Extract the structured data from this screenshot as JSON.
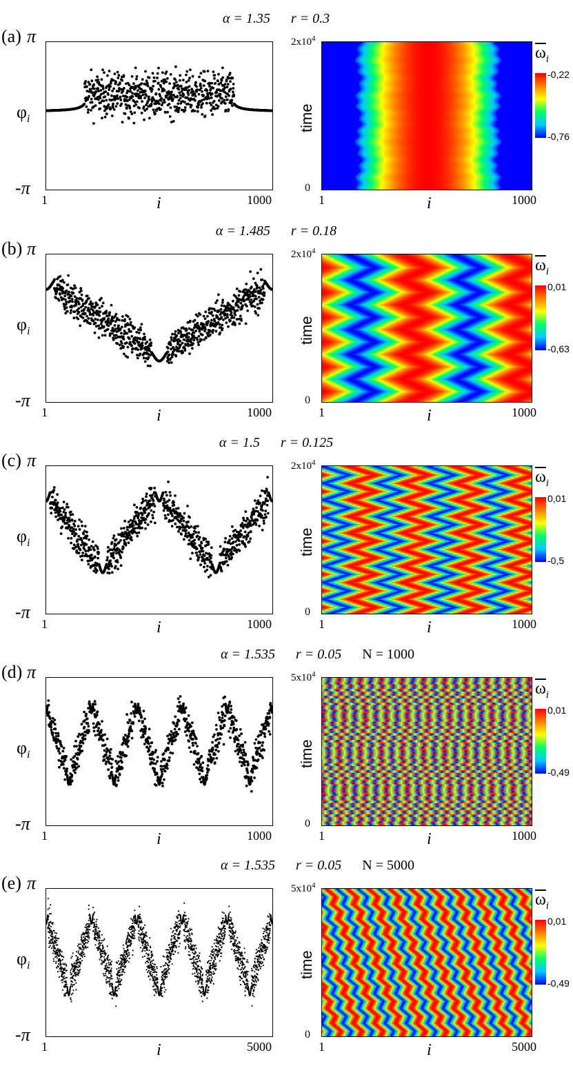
{
  "panels": [
    {
      "label": "(a)",
      "params": {
        "alpha": "α = 1.35",
        "r": "r = 0.3",
        "N": ""
      },
      "phase_plot": {
        "ylabel": "φ",
        "ylabel_sub": "i",
        "ytop": "π",
        "ybottom": "-π",
        "xlabel": "i",
        "xmin": "1",
        "xmax": "1000",
        "N": 1000,
        "pattern": {
          "type": "single-incoherent-core",
          "coherent_phase": 0.02,
          "incoherent_fraction": 0.66,
          "center": 0.5
        }
      },
      "heatmap": {
        "ylabel": "time",
        "ymax": "2x10",
        "ymax_exp": "4",
        "ymin": "0",
        "xlabel": "i",
        "xmin": "1",
        "xmax": "1000",
        "colorbar": {
          "symbol": "ω",
          "sub": "i",
          "max": "-0,22",
          "min": "-0,76"
        },
        "pattern": {
          "type": "stationary",
          "center": 0.5,
          "width": 0.66
        }
      }
    },
    {
      "label": "(b)",
      "params": {
        "alpha": "α = 1.485",
        "r": "r = 0.18",
        "N": ""
      },
      "phase_plot": {
        "ylabel": "φ",
        "ylabel_sub": "i",
        "ytop": "π",
        "ybottom": "-π",
        "xlabel": "i",
        "xmin": "1",
        "xmax": "1000",
        "N": 1000,
        "pattern": {
          "type": "two-cluster",
          "clusters": 1
        }
      },
      "heatmap": {
        "ylabel": "time",
        "ymax": "2x10",
        "ymax_exp": "4",
        "ymin": "0",
        "xlabel": "i",
        "xmin": "1",
        "xmax": "1000",
        "colorbar": {
          "symbol": "ω",
          "sub": "i",
          "max": "0,01",
          "min": "-0,63"
        },
        "pattern": {
          "type": "zigzag",
          "wavelength_count": 2,
          "zig_periods": 6
        }
      }
    },
    {
      "label": "(c)",
      "params": {
        "alpha": "α = 1.5",
        "r": "r = 0.125",
        "N": ""
      },
      "phase_plot": {
        "ylabel": "φ",
        "ylabel_sub": "i",
        "ytop": "π",
        "ybottom": "-π",
        "xlabel": "i",
        "xmin": "1",
        "xmax": "1000",
        "N": 1000,
        "pattern": {
          "type": "two-cluster",
          "clusters": 2
        }
      },
      "heatmap": {
        "ylabel": "time",
        "ymax": "2x10",
        "ymax_exp": "4",
        "ymin": "0",
        "xlabel": "i",
        "xmin": "1",
        "xmax": "1000",
        "colorbar": {
          "symbol": "ω",
          "sub": "i",
          "max": "0,01",
          "min": "-0,5"
        },
        "pattern": {
          "type": "zigzag",
          "wavelength_count": 4,
          "zig_periods": 9
        }
      }
    },
    {
      "label": "(d)",
      "params": {
        "alpha": "α = 1.535",
        "r": "r = 0.05",
        "N": "N = 1000"
      },
      "phase_plot": {
        "ylabel": "φ",
        "ylabel_sub": "i",
        "ytop": "π",
        "ybottom": "-π",
        "xlabel": "i",
        "xmin": "1",
        "xmax": "1000",
        "N": 1000,
        "pattern": {
          "type": "two-cluster",
          "clusters": 5
        }
      },
      "heatmap": {
        "ylabel": "time",
        "ymax": "5x10",
        "ymax_exp": "4",
        "ymin": "0",
        "xlabel": "i",
        "xmin": "1",
        "xmax": "1000",
        "colorbar": {
          "symbol": "ω",
          "sub": "i",
          "max": "0,01",
          "min": "-0,49"
        },
        "pattern": {
          "type": "zigzag",
          "wavelength_count": 10,
          "zig_periods": 22
        }
      }
    },
    {
      "label": "(e)",
      "params": {
        "alpha": "α = 1.535",
        "r": "r = 0.05",
        "N": "N = 5000"
      },
      "phase_plot": {
        "ylabel": "φ",
        "ylabel_sub": "i",
        "ytop": "π",
        "ybottom": "-π",
        "xlabel": "i",
        "xmin": "1",
        "xmax": "5000",
        "N": 5000,
        "pattern": {
          "type": "two-cluster",
          "clusters": 5
        }
      },
      "heatmap": {
        "ylabel": "time",
        "ymax": "5x10",
        "ymax_exp": "4",
        "ymin": "0",
        "xlabel": "i",
        "xmin": "1",
        "xmax": "5000",
        "colorbar": {
          "symbol": "ω",
          "sub": "i",
          "max": "0,01",
          "min": "-0,49"
        },
        "pattern": {
          "type": "drifting-stripes",
          "wavelength_count": 10,
          "zig_periods": 10
        }
      }
    }
  ],
  "colors": {
    "colormap": [
      "#0000ff",
      "#00c8ff",
      "#00ff66",
      "#ffff00",
      "#ff7f00",
      "#ff0000"
    ],
    "dots": "#000000"
  }
}
